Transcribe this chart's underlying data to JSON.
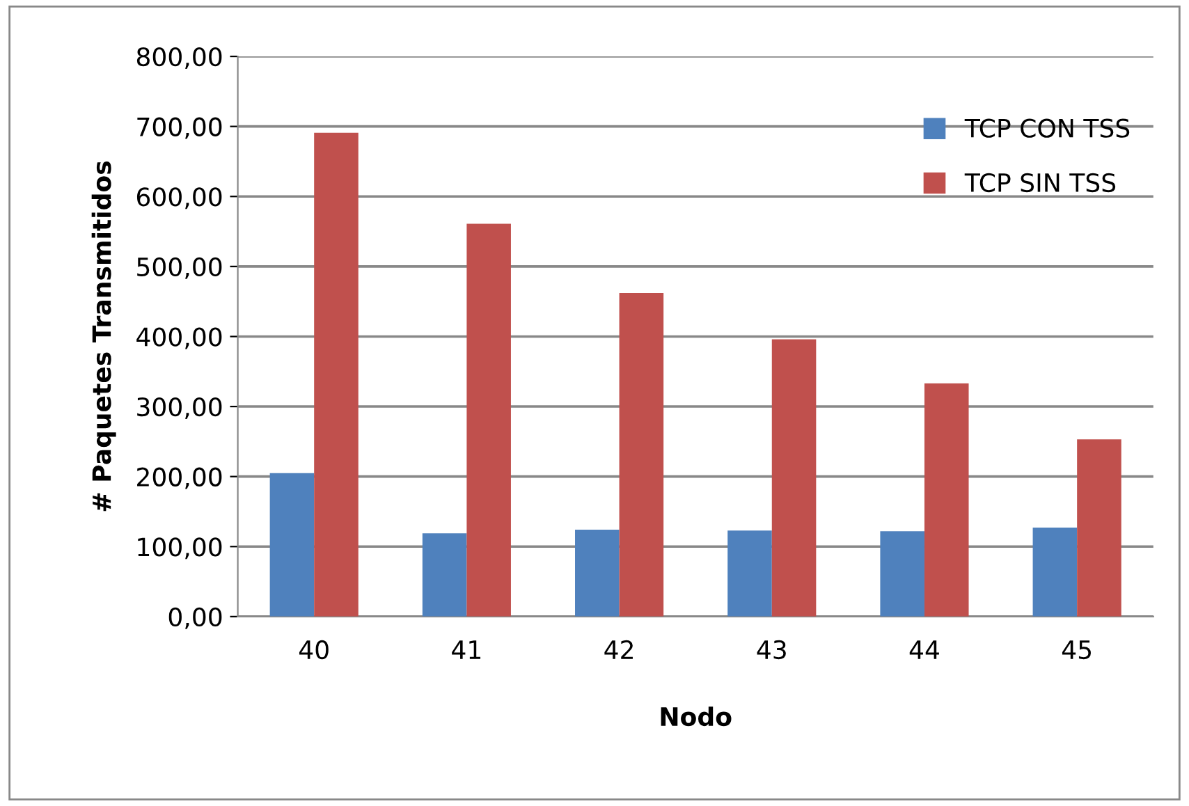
{
  "chart_data": {
    "type": "bar",
    "xlabel": "Nodo",
    "ylabel": "# Paquetes Transmitidos",
    "categories": [
      "40",
      "41",
      "42",
      "43",
      "44",
      "45"
    ],
    "series": [
      {
        "name": "TCP CON TSS",
        "color": "#4f81bd",
        "values": [
          205,
          119,
          124,
          123,
          122,
          127
        ]
      },
      {
        "name": "TCP SIN TSS",
        "color": "#c0504d",
        "values": [
          691,
          561,
          462,
          396,
          333,
          253
        ]
      }
    ],
    "ylim": [
      0,
      800
    ],
    "yticks": [
      {
        "value": 0,
        "label": "0,00"
      },
      {
        "value": 100,
        "label": "100,00"
      },
      {
        "value": 200,
        "label": "200,00"
      },
      {
        "value": 300,
        "label": "300,00"
      },
      {
        "value": 400,
        "label": "400,00"
      },
      {
        "value": 500,
        "label": "500,00"
      },
      {
        "value": 600,
        "label": "600,00"
      },
      {
        "value": 700,
        "label": "700,00"
      },
      {
        "value": 800,
        "label": "800,00"
      }
    ],
    "grid": "y",
    "legend": "top right"
  }
}
